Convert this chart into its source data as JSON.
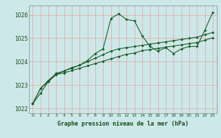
{
  "title": "Graphe pression niveau de la mer (hPa)",
  "bg_color": "#cce8e8",
  "grid_color": "#e8a0a0",
  "line_color": "#1a5c28",
  "ylim": [
    1021.8,
    1026.4
  ],
  "yticks": [
    1022,
    1023,
    1024,
    1025,
    1026
  ],
  "xlim": [
    -0.5,
    23.5
  ],
  "xticks": [
    0,
    1,
    2,
    3,
    4,
    5,
    6,
    7,
    8,
    9,
    10,
    11,
    12,
    13,
    14,
    15,
    16,
    17,
    18,
    19,
    20,
    21,
    22,
    23
  ],
  "series": [
    [
      1022.2,
      1022.65,
      1023.15,
      1023.45,
      1023.6,
      1023.72,
      1023.85,
      1024.05,
      1024.35,
      1024.55,
      1025.85,
      1026.05,
      1025.8,
      1025.75,
      1025.1,
      1024.65,
      1024.45,
      1024.6,
      1024.35,
      1024.55,
      1024.65,
      1024.65,
      1025.35,
      1026.1
    ],
    [
      1022.2,
      1022.85,
      1023.15,
      1023.45,
      1023.52,
      1023.62,
      1023.72,
      1023.82,
      1023.92,
      1024.02,
      1024.12,
      1024.22,
      1024.32,
      1024.37,
      1024.47,
      1024.52,
      1024.57,
      1024.62,
      1024.67,
      1024.72,
      1024.77,
      1024.82,
      1024.92,
      1025.02
    ],
    [
      1022.2,
      1022.85,
      1023.2,
      1023.5,
      1023.6,
      1023.75,
      1023.85,
      1024.0,
      1024.15,
      1024.3,
      1024.45,
      1024.55,
      1024.6,
      1024.65,
      1024.7,
      1024.75,
      1024.8,
      1024.85,
      1024.9,
      1024.95,
      1025.0,
      1025.05,
      1025.15,
      1025.25
    ]
  ]
}
